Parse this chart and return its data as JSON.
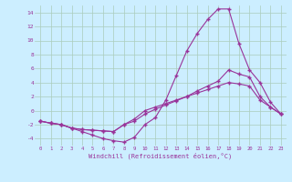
{
  "xlabel": "Windchill (Refroidissement éolien,°C)",
  "background_color": "#cceeff",
  "grid_color": "#aaccbb",
  "line_color": "#993399",
  "line1_x": [
    0,
    1,
    2,
    3,
    4,
    5,
    6,
    7,
    8,
    9,
    10,
    11,
    12,
    13,
    14,
    15,
    16,
    17,
    18,
    19,
    20,
    21,
    22,
    23
  ],
  "line1_y": [
    -1.5,
    -1.8,
    -2.0,
    -2.5,
    -3.0,
    -3.5,
    -4.0,
    -4.3,
    -4.5,
    -3.8,
    -2.0,
    -1.0,
    1.5,
    5.0,
    8.5,
    11.0,
    13.0,
    14.5,
    14.5,
    9.5,
    5.8,
    4.0,
    1.2,
    -0.5
  ],
  "line2_x": [
    0,
    1,
    2,
    3,
    4,
    5,
    6,
    7,
    8,
    9,
    10,
    11,
    12,
    13,
    14,
    15,
    16,
    17,
    18,
    19,
    20,
    21,
    22,
    23
  ],
  "line2_y": [
    -1.5,
    -1.8,
    -2.0,
    -2.5,
    -2.7,
    -2.8,
    -2.9,
    -3.0,
    -2.0,
    -1.5,
    -0.5,
    0.2,
    0.8,
    1.4,
    2.0,
    2.8,
    3.5,
    4.2,
    5.8,
    5.2,
    4.8,
    2.0,
    0.5,
    -0.5
  ],
  "line3_x": [
    0,
    1,
    2,
    3,
    4,
    5,
    6,
    7,
    8,
    9,
    10,
    11,
    12,
    13,
    14,
    15,
    16,
    17,
    18,
    19,
    20,
    21,
    22,
    23
  ],
  "line3_y": [
    -1.5,
    -1.8,
    -2.0,
    -2.5,
    -2.7,
    -2.8,
    -2.9,
    -3.0,
    -2.0,
    -1.2,
    0.0,
    0.5,
    1.0,
    1.5,
    2.0,
    2.5,
    3.0,
    3.5,
    4.0,
    3.8,
    3.5,
    1.5,
    0.5,
    -0.5
  ],
  "ylim": [
    -5,
    15
  ],
  "xlim": [
    -0.5,
    23.5
  ],
  "yticks": [
    -4,
    -2,
    0,
    2,
    4,
    6,
    8,
    10,
    12,
    14
  ],
  "xticks": [
    0,
    1,
    2,
    3,
    4,
    5,
    6,
    7,
    8,
    9,
    10,
    11,
    12,
    13,
    14,
    15,
    16,
    17,
    18,
    19,
    20,
    21,
    22,
    23
  ]
}
